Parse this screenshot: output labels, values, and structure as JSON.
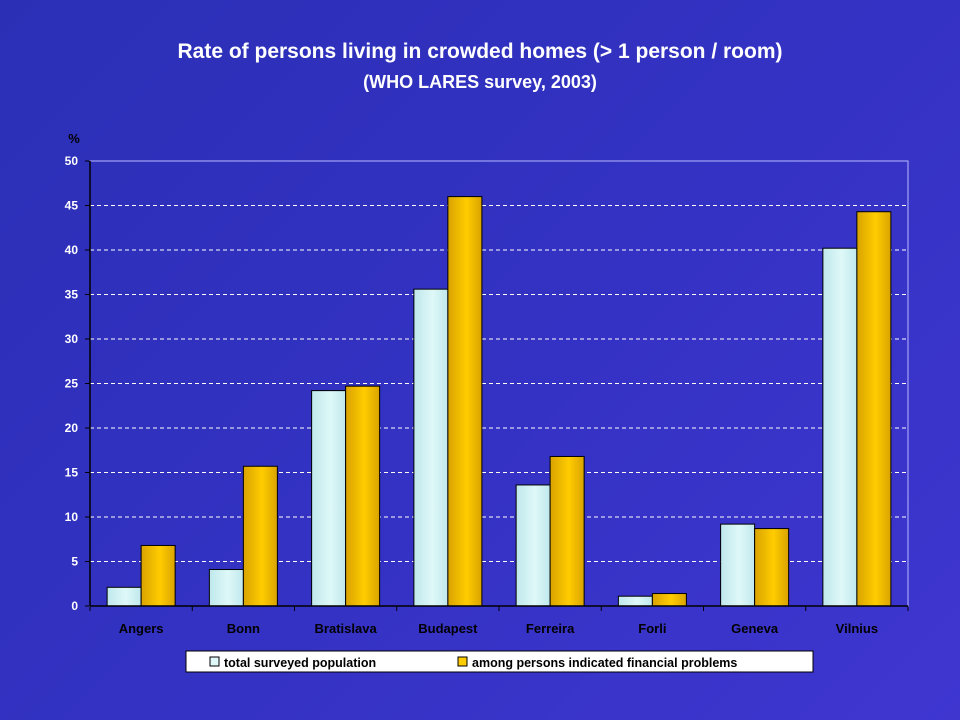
{
  "slide": {
    "title_line1": "Rate of persons living in crowded homes (> 1 person / room)",
    "title_line2": "(WHO LARES survey, 2003)"
  },
  "colors": {
    "background": "#3432c4",
    "series_1_fill": "#dff8f8",
    "series_2_fill": "#ffcc00",
    "gridline": "#ffffff",
    "axis_text": "#ffffff",
    "plot_background": "#3432c4",
    "legend_background": "#ffffff"
  },
  "chart_data": {
    "type": "bar",
    "title": "Rate of persons living in crowded homes (> 1 person / room)",
    "subtitle": "(WHO LARES survey, 2003)",
    "ylabel": "%",
    "xlabel": "",
    "ylim": [
      0,
      50
    ],
    "yticks": [
      0,
      5,
      10,
      15,
      20,
      25,
      30,
      35,
      40,
      45,
      50
    ],
    "grid": true,
    "legend_position": "bottom",
    "categories": [
      "Angers",
      "Bonn",
      "Bratislava",
      "Budapest",
      "Ferreira",
      "Forli",
      "Geneva",
      "Vilnius"
    ],
    "series": [
      {
        "name": "total surveyed population",
        "color": "#dff8f8",
        "values": [
          2.1,
          4.1,
          24.2,
          35.6,
          13.6,
          1.1,
          9.2,
          40.2
        ]
      },
      {
        "name": "among persons indicated financial problems",
        "color": "#ffcc00",
        "values": [
          6.8,
          15.7,
          24.7,
          46.0,
          16.8,
          1.4,
          8.7,
          44.3
        ]
      }
    ]
  }
}
